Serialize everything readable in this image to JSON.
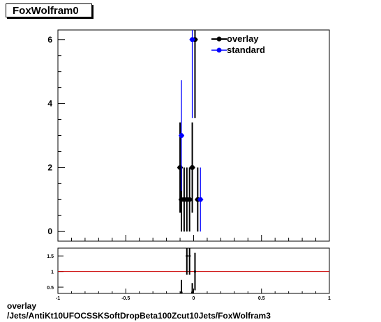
{
  "title": "FoxWolfram0",
  "footer": {
    "line1": "overlay",
    "line2": "/Jets/AntiKt10UFOCSSKSoftDropBeta100Zcut10Jets/FoxWolfram3"
  },
  "colors": {
    "overlay": "#000000",
    "standard": "#0000ff",
    "ratio_line": "#cc0000"
  },
  "chart_data": [
    {
      "type": "scatter",
      "title": "FoxWolfram0",
      "xlim": [
        -1,
        1
      ],
      "ylim": [
        -0.3,
        6.3
      ],
      "yticks": [
        0,
        2,
        4,
        6
      ],
      "legend": "top-right",
      "series": [
        {
          "name": "overlay",
          "color": "#000000",
          "points": [
            {
              "x": -0.1,
              "y": 2,
              "err": 1.41
            },
            {
              "x": -0.09,
              "y": 1,
              "err": 1
            },
            {
              "x": -0.07,
              "y": 1,
              "err": 1
            },
            {
              "x": -0.05,
              "y": 1,
              "err": 1
            },
            {
              "x": -0.03,
              "y": 1,
              "err": 1
            },
            {
              "x": -0.01,
              "y": 2,
              "err": 1.41
            },
            {
              "x": 0.01,
              "y": 6,
              "err": 2.45
            },
            {
              "x": 0.03,
              "y": 1,
              "err": 1
            }
          ]
        },
        {
          "name": "standard",
          "color": "#0000ff",
          "points": [
            {
              "x": -0.09,
              "y": 3,
              "err": 1.73
            },
            {
              "x": -0.01,
              "y": 6,
              "err": 2.45
            },
            {
              "x": 0.05,
              "y": 1,
              "err": 1
            }
          ]
        }
      ]
    },
    {
      "type": "scatter",
      "xlim": [
        -1,
        1
      ],
      "ylim": [
        0.3,
        1.75
      ],
      "xticks": [
        -1,
        -0.5,
        0,
        0.5,
        1
      ],
      "xtick_labels": [
        "-1",
        "-0.5",
        "0",
        "0.5",
        "1"
      ],
      "yticks": [
        0.5,
        1,
        1.5
      ],
      "ytick_labels": [
        "0.5",
        "1",
        "1.5"
      ],
      "reference_line": 1,
      "series": [
        {
          "name": "ratio",
          "color": "#000000",
          "points": [
            {
              "x": -0.09,
              "y": 0.33,
              "err": 0.4
            },
            {
              "x": -0.05,
              "y": 1.5,
              "err": 0.6
            },
            {
              "x": -0.03,
              "y": 1.5,
              "err": 0.6
            },
            {
              "x": -0.01,
              "y": 0.33,
              "err": 0.3
            },
            {
              "x": 0.01,
              "y": 1.0,
              "err": 0.6
            }
          ]
        }
      ]
    }
  ]
}
